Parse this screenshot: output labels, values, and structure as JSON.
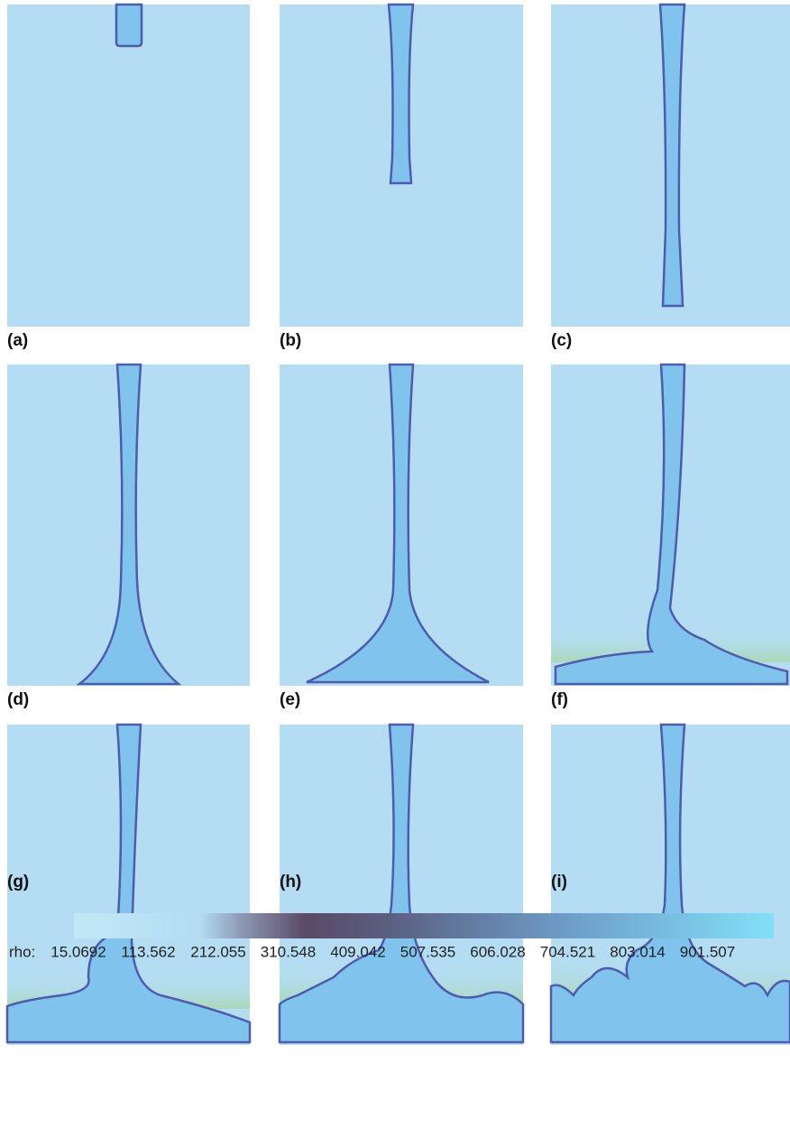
{
  "panels": {
    "labels": [
      "(a)",
      "(b)",
      "(c)",
      "(d)",
      "(e)",
      "(f)",
      "(g)",
      "(h)",
      "(i)"
    ]
  },
  "colorbar": {
    "label": "rho:",
    "ticks": [
      "15.0692",
      "113.562",
      "212.055",
      "310.548",
      "409.042",
      "507.535",
      "606.028",
      "704.521",
      "803.014",
      "901.507"
    ]
  }
}
